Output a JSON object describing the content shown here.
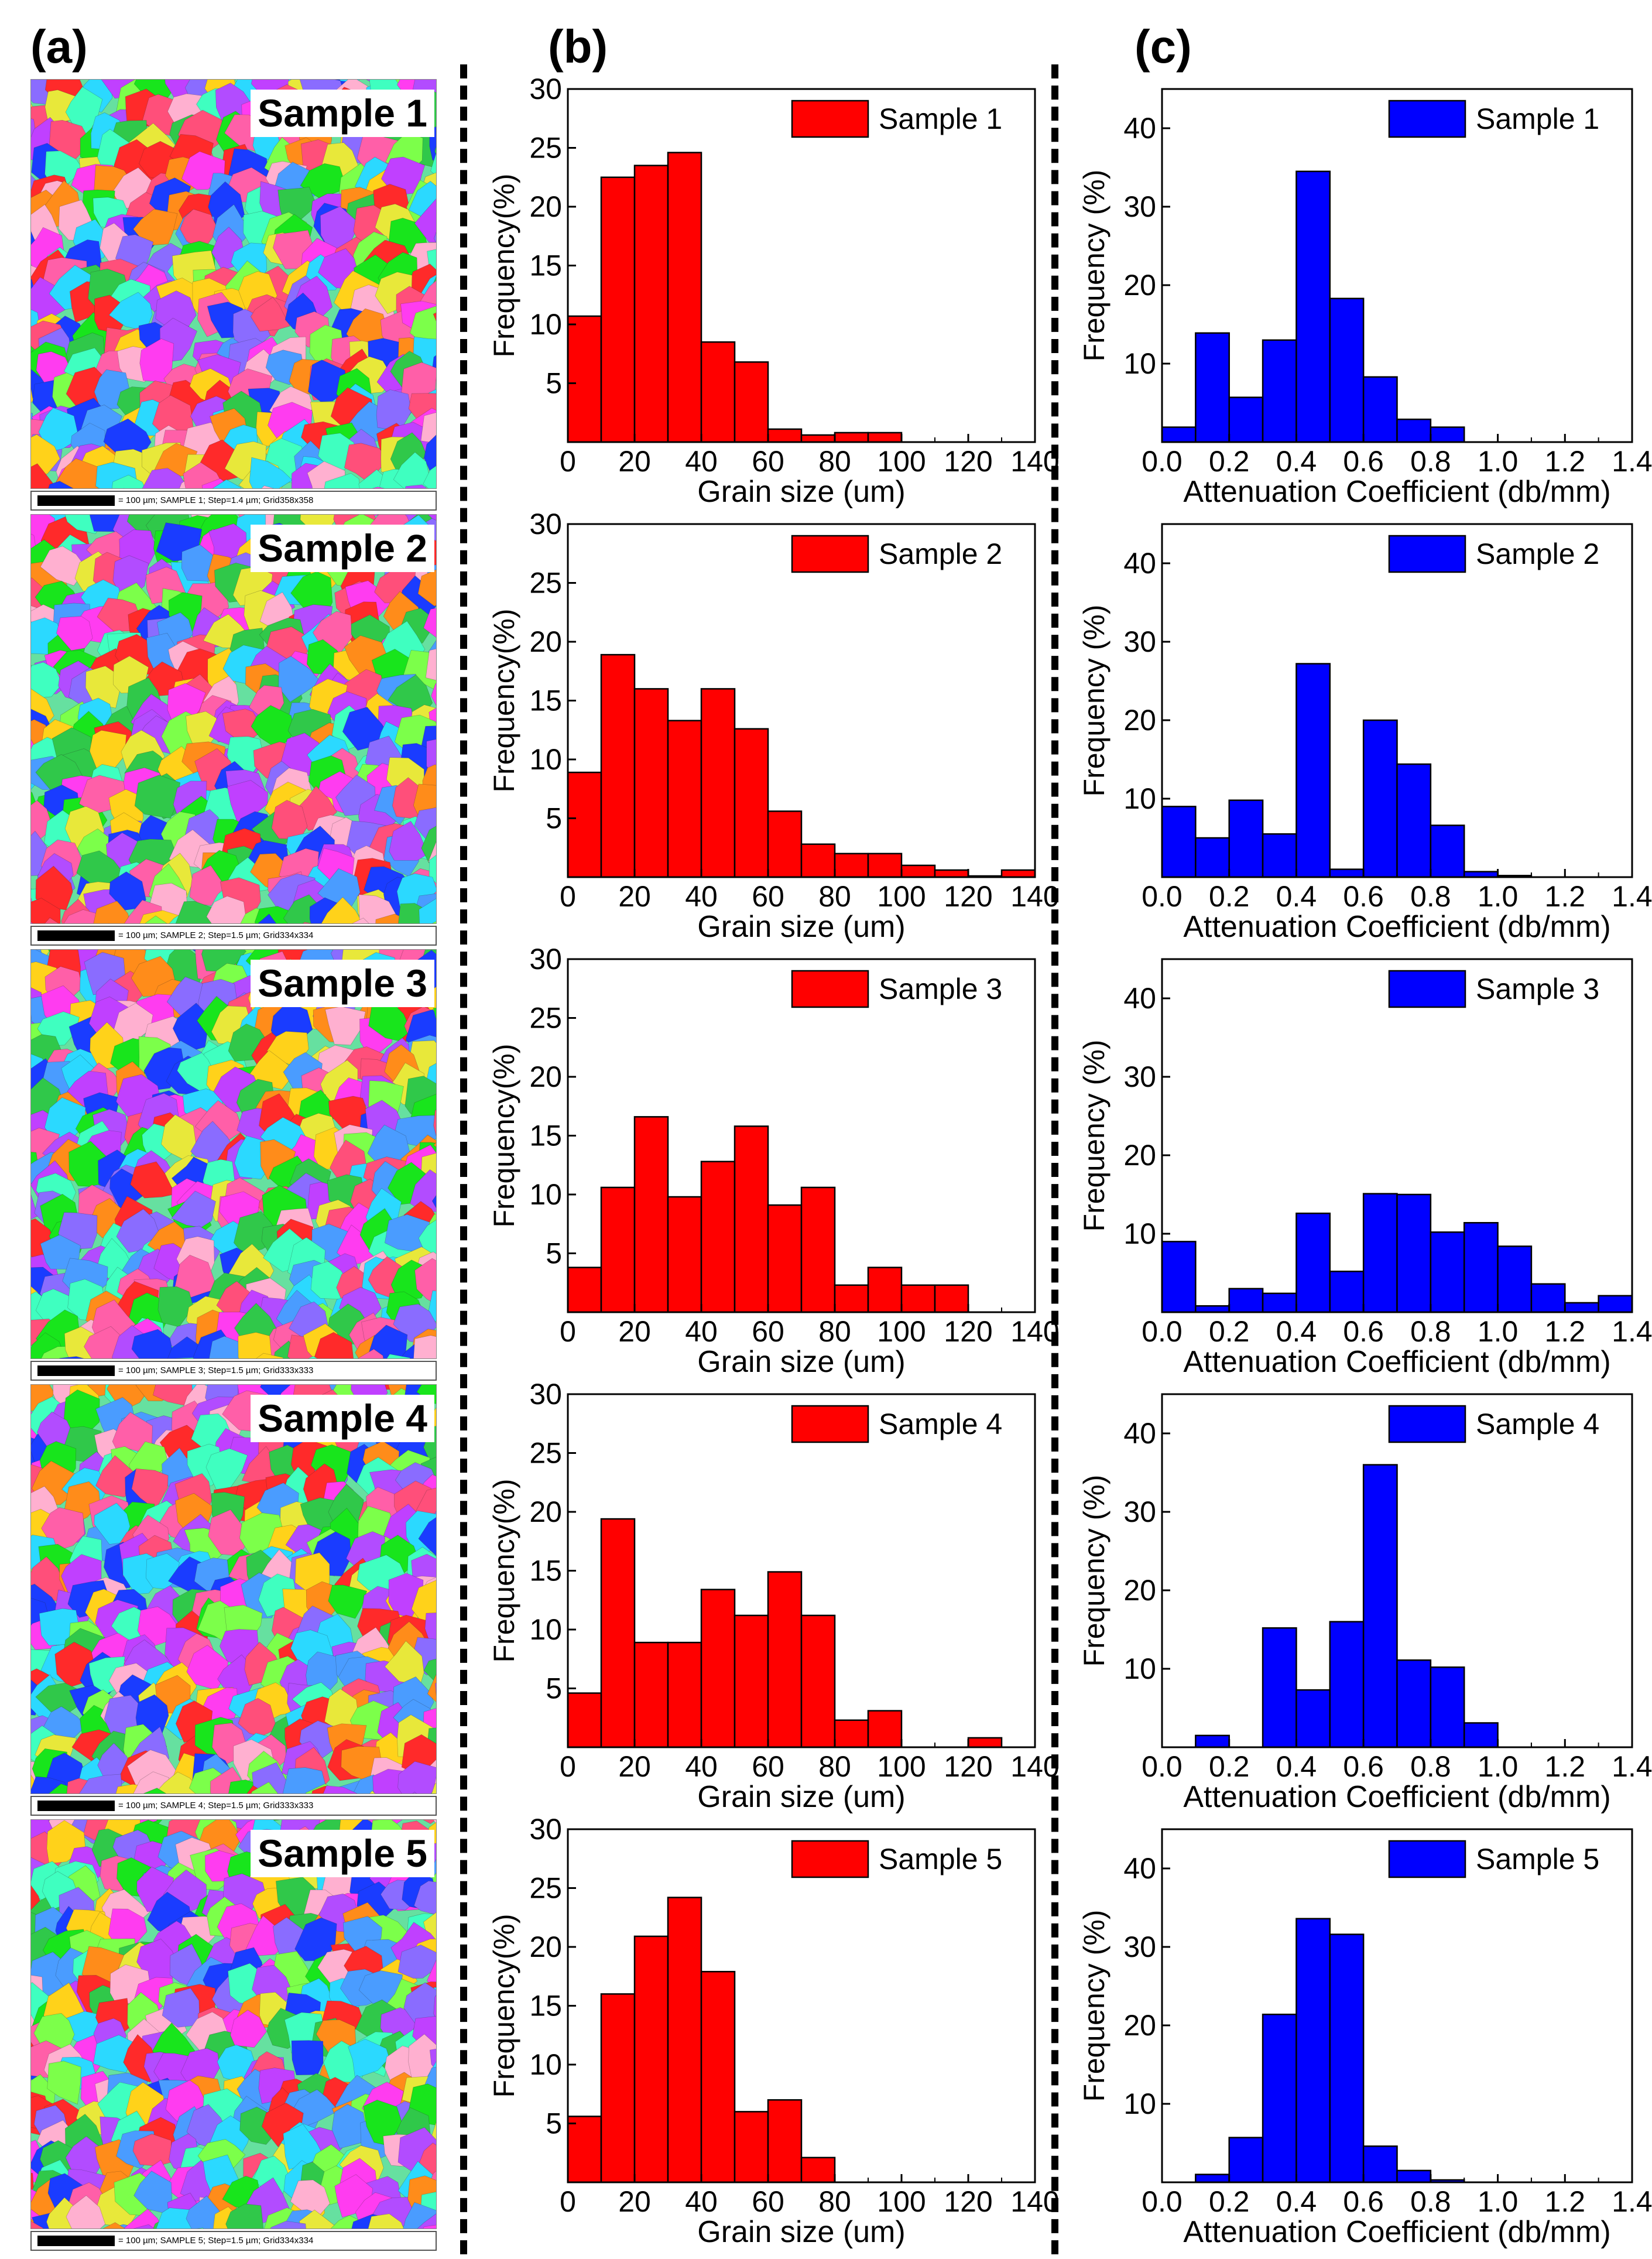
{
  "panel_labels": {
    "a": "(a)",
    "b": "(b)",
    "c": "(c)"
  },
  "colors": {
    "grain_bar": "#ff0000",
    "attenuation_bar": "#0000ff",
    "bar_edge": "#000000"
  },
  "ebsd_maps": [
    {
      "title": "Sample 1",
      "caption": "= 100 µm; SAMPLE 1; Step=1.4 µm; Grid358x358"
    },
    {
      "title": "Sample 2",
      "caption": "= 100 µm; SAMPLE 2; Step=1.5 µm; Grid334x334"
    },
    {
      "title": "Sample 3",
      "caption": "= 100 µm; SAMPLE 3; Step=1.5 µm; Grid333x333"
    },
    {
      "title": "Sample 4",
      "caption": "= 100 µm; SAMPLE 4; Step=1.5 µm; Grid333x333"
    },
    {
      "title": "Sample 5",
      "caption": "= 100 µm; SAMPLE 5; Step=1.5 µm; Grid334x334"
    }
  ],
  "chart_data": [
    {
      "id": "b1",
      "type": "bar",
      "title": "",
      "legend": "Sample 1",
      "xlabel": "Grain size (um)",
      "ylabel": "Frequency(%)",
      "xlim": [
        0,
        140
      ],
      "ylim": [
        0,
        30
      ],
      "bin_width": 10,
      "xticks": [
        0,
        20,
        40,
        60,
        80,
        100,
        120,
        140
      ],
      "xtick_labels": [
        "0",
        "20",
        "40",
        "60",
        "80",
        "100",
        "120",
        "140"
      ],
      "yticks": [
        5,
        10,
        15,
        20,
        25,
        30
      ],
      "ytick_labels": [
        "5",
        "10",
        "15",
        "20",
        "25",
        "30"
      ],
      "x": [
        5,
        15,
        25,
        35,
        45,
        55,
        65,
        75,
        85,
        95
      ],
      "values": [
        10.7,
        22.5,
        23.5,
        24.6,
        8.5,
        6.8,
        1.1,
        0.6,
        0.8,
        0.8
      ]
    },
    {
      "id": "b2",
      "type": "bar",
      "title": "",
      "legend": "Sample 2",
      "xlabel": "Grain size (um)",
      "ylabel": "Frequency(%)",
      "xlim": [
        0,
        140
      ],
      "ylim": [
        0,
        30
      ],
      "bin_width": 10,
      "xticks": [
        0,
        20,
        40,
        60,
        80,
        100,
        120,
        140
      ],
      "xtick_labels": [
        "0",
        "20",
        "40",
        "60",
        "80",
        "100",
        "120",
        "140"
      ],
      "yticks": [
        5,
        10,
        15,
        20,
        25,
        30
      ],
      "ytick_labels": [
        "5",
        "10",
        "15",
        "20",
        "25",
        "30"
      ],
      "x": [
        5,
        15,
        25,
        35,
        45,
        55,
        65,
        75,
        85,
        95,
        105,
        115,
        125,
        135
      ],
      "values": [
        8.9,
        18.9,
        16.0,
        13.3,
        16.0,
        12.6,
        5.6,
        2.8,
        2.0,
        2.0,
        1.0,
        0.6,
        0.1,
        0.6
      ]
    },
    {
      "id": "b3",
      "type": "bar",
      "title": "",
      "legend": "Sample 3",
      "xlabel": "Grain size (um)",
      "ylabel": "Frequency(%)",
      "xlim": [
        0,
        140
      ],
      "ylim": [
        0,
        30
      ],
      "bin_width": 10,
      "xticks": [
        0,
        20,
        40,
        60,
        80,
        100,
        120,
        140
      ],
      "xtick_labels": [
        "0",
        "20",
        "40",
        "60",
        "80",
        "100",
        "120",
        "140"
      ],
      "yticks": [
        5,
        10,
        15,
        20,
        25,
        30
      ],
      "ytick_labels": [
        "5",
        "10",
        "15",
        "20",
        "25",
        "30"
      ],
      "x": [
        5,
        15,
        25,
        35,
        45,
        55,
        65,
        75,
        85,
        95,
        105,
        115
      ],
      "values": [
        3.8,
        10.6,
        16.6,
        9.8,
        12.8,
        15.8,
        9.1,
        10.6,
        2.3,
        3.8,
        2.3,
        2.3
      ]
    },
    {
      "id": "b4",
      "type": "bar",
      "title": "",
      "legend": "Sample 4",
      "xlabel": "Grain size (um)",
      "ylabel": "Frequency(%)",
      "xlim": [
        0,
        140
      ],
      "ylim": [
        0,
        30
      ],
      "bin_width": 10,
      "xticks": [
        0,
        20,
        40,
        60,
        80,
        100,
        120,
        140
      ],
      "xtick_labels": [
        "0",
        "20",
        "40",
        "60",
        "80",
        "100",
        "120",
        "140"
      ],
      "yticks": [
        5,
        10,
        15,
        20,
        25,
        30
      ],
      "ytick_labels": [
        "5",
        "10",
        "15",
        "20",
        "25",
        "30"
      ],
      "x": [
        5,
        15,
        25,
        35,
        45,
        55,
        65,
        75,
        85,
        95,
        125
      ],
      "values": [
        4.6,
        19.4,
        8.9,
        8.9,
        13.4,
        11.2,
        14.9,
        11.2,
        2.3,
        3.1,
        0.8
      ]
    },
    {
      "id": "b5",
      "type": "bar",
      "title": "",
      "legend": "Sample 5",
      "xlabel": "Grain size (um)",
      "ylabel": "Frequency(%)",
      "xlim": [
        0,
        140
      ],
      "ylim": [
        0,
        30
      ],
      "bin_width": 10,
      "xticks": [
        0,
        20,
        40,
        60,
        80,
        100,
        120,
        140
      ],
      "xtick_labels": [
        "0",
        "20",
        "40",
        "60",
        "80",
        "100",
        "120",
        "140"
      ],
      "yticks": [
        5,
        10,
        15,
        20,
        25,
        30
      ],
      "ytick_labels": [
        "5",
        "10",
        "15",
        "20",
        "25",
        "30"
      ],
      "x": [
        5,
        15,
        25,
        35,
        45,
        55,
        65,
        75
      ],
      "values": [
        5.6,
        16.0,
        20.9,
        24.2,
        17.9,
        6.0,
        7.0,
        2.1
      ]
    },
    {
      "id": "c1",
      "type": "bar",
      "title": "",
      "legend": "Sample 1",
      "xlabel": "Attenuation Coefficient (db/mm)",
      "ylabel": "Frequency (%)",
      "xlim": [
        0,
        1.4
      ],
      "ylim": [
        0,
        45
      ],
      "bin_width": 0.1,
      "xticks": [
        0,
        0.2,
        0.4,
        0.6,
        0.8,
        1.0,
        1.2,
        1.4
      ],
      "xtick_labels": [
        "0.0",
        "0.2",
        "0.4",
        "0.6",
        "0.8",
        "1.0",
        "1.2",
        "1.4"
      ],
      "yticks": [
        10,
        20,
        30,
        40
      ],
      "ytick_labels": [
        "10",
        "20",
        "30",
        "40"
      ],
      "x": [
        0.05,
        0.15,
        0.25,
        0.35,
        0.45,
        0.55,
        0.65,
        0.75,
        0.85
      ],
      "values": [
        1.9,
        13.9,
        5.7,
        13.0,
        34.5,
        18.3,
        8.3,
        2.9,
        1.9
      ]
    },
    {
      "id": "c2",
      "type": "bar",
      "title": "",
      "legend": "Sample 2",
      "xlabel": "Attenuation Coefficient (db/mm)",
      "ylabel": "Frequency (%)",
      "xlim": [
        0,
        1.4
      ],
      "ylim": [
        0,
        45
      ],
      "bin_width": 0.1,
      "xticks": [
        0,
        0.2,
        0.4,
        0.6,
        0.8,
        1.0,
        1.2,
        1.4
      ],
      "xtick_labels": [
        "0.0",
        "0.2",
        "0.4",
        "0.6",
        "0.8",
        "1.0",
        "1.2",
        "1.4"
      ],
      "yticks": [
        10,
        20,
        30,
        40
      ],
      "ytick_labels": [
        "10",
        "20",
        "30",
        "40"
      ],
      "x": [
        0.05,
        0.15,
        0.25,
        0.35,
        0.45,
        0.55,
        0.65,
        0.75,
        0.85,
        0.95,
        1.05
      ],
      "values": [
        9.0,
        5.0,
        9.8,
        5.5,
        27.2,
        1.0,
        20.0,
        14.4,
        6.6,
        0.7,
        0.2
      ]
    },
    {
      "id": "c3",
      "type": "bar",
      "title": "",
      "legend": "Sample 3",
      "xlabel": "Attenuation Coefficient (db/mm)",
      "ylabel": "Frequency (%)",
      "xlim": [
        0,
        1.4
      ],
      "ylim": [
        0,
        45
      ],
      "bin_width": 0.1,
      "xticks": [
        0,
        0.2,
        0.4,
        0.6,
        0.8,
        1.0,
        1.2,
        1.4
      ],
      "xtick_labels": [
        "0.0",
        "0.2",
        "0.4",
        "0.6",
        "0.8",
        "1.0",
        "1.2",
        "1.4"
      ],
      "yticks": [
        10,
        20,
        30,
        40
      ],
      "ytick_labels": [
        "10",
        "20",
        "30",
        "40"
      ],
      "x": [
        0.05,
        0.15,
        0.25,
        0.35,
        0.45,
        0.55,
        0.65,
        0.75,
        0.85,
        0.95,
        1.05,
        1.15,
        1.25,
        1.35
      ],
      "values": [
        9.0,
        0.8,
        3.0,
        2.4,
        12.6,
        5.2,
        15.1,
        15.0,
        10.2,
        11.4,
        8.4,
        3.6,
        1.2,
        2.1
      ]
    },
    {
      "id": "c4",
      "type": "bar",
      "title": "",
      "legend": "Sample 4",
      "xlabel": "Attenuation Coefficient (db/mm)",
      "ylabel": "Frequency (%)",
      "xlim": [
        0,
        1.4
      ],
      "ylim": [
        0,
        45
      ],
      "bin_width": 0.1,
      "xticks": [
        0,
        0.2,
        0.4,
        0.6,
        0.8,
        1.0,
        1.2,
        1.4
      ],
      "xtick_labels": [
        "0.0",
        "0.2",
        "0.4",
        "0.6",
        "0.8",
        "1.0",
        "1.2",
        "1.4"
      ],
      "yticks": [
        10,
        20,
        30,
        40
      ],
      "ytick_labels": [
        "10",
        "20",
        "30",
        "40"
      ],
      "x": [
        0.15,
        0.35,
        0.45,
        0.55,
        0.65,
        0.75,
        0.85,
        0.95
      ],
      "values": [
        1.5,
        15.2,
        7.3,
        16.0,
        36.0,
        11.1,
        10.2,
        3.1
      ]
    },
    {
      "id": "c5",
      "type": "bar",
      "title": "",
      "legend": "Sample 5",
      "xlabel": "Attenuation Coefficient (db/mm)",
      "ylabel": "Frequency (%)",
      "xlim": [
        0,
        1.4
      ],
      "ylim": [
        0,
        45
      ],
      "bin_width": 0.1,
      "xticks": [
        0,
        0.2,
        0.4,
        0.6,
        0.8,
        1.0,
        1.2,
        1.4
      ],
      "xtick_labels": [
        "0.0",
        "0.2",
        "0.4",
        "0.6",
        "0.8",
        "1.0",
        "1.2",
        "1.4"
      ],
      "yticks": [
        10,
        20,
        30,
        40
      ],
      "ytick_labels": [
        "10",
        "20",
        "30",
        "40"
      ],
      "x": [
        0.15,
        0.25,
        0.35,
        0.45,
        0.55,
        0.65,
        0.75,
        0.85
      ],
      "values": [
        1.0,
        5.7,
        21.4,
        33.6,
        31.6,
        4.6,
        1.5,
        0.3
      ]
    }
  ]
}
